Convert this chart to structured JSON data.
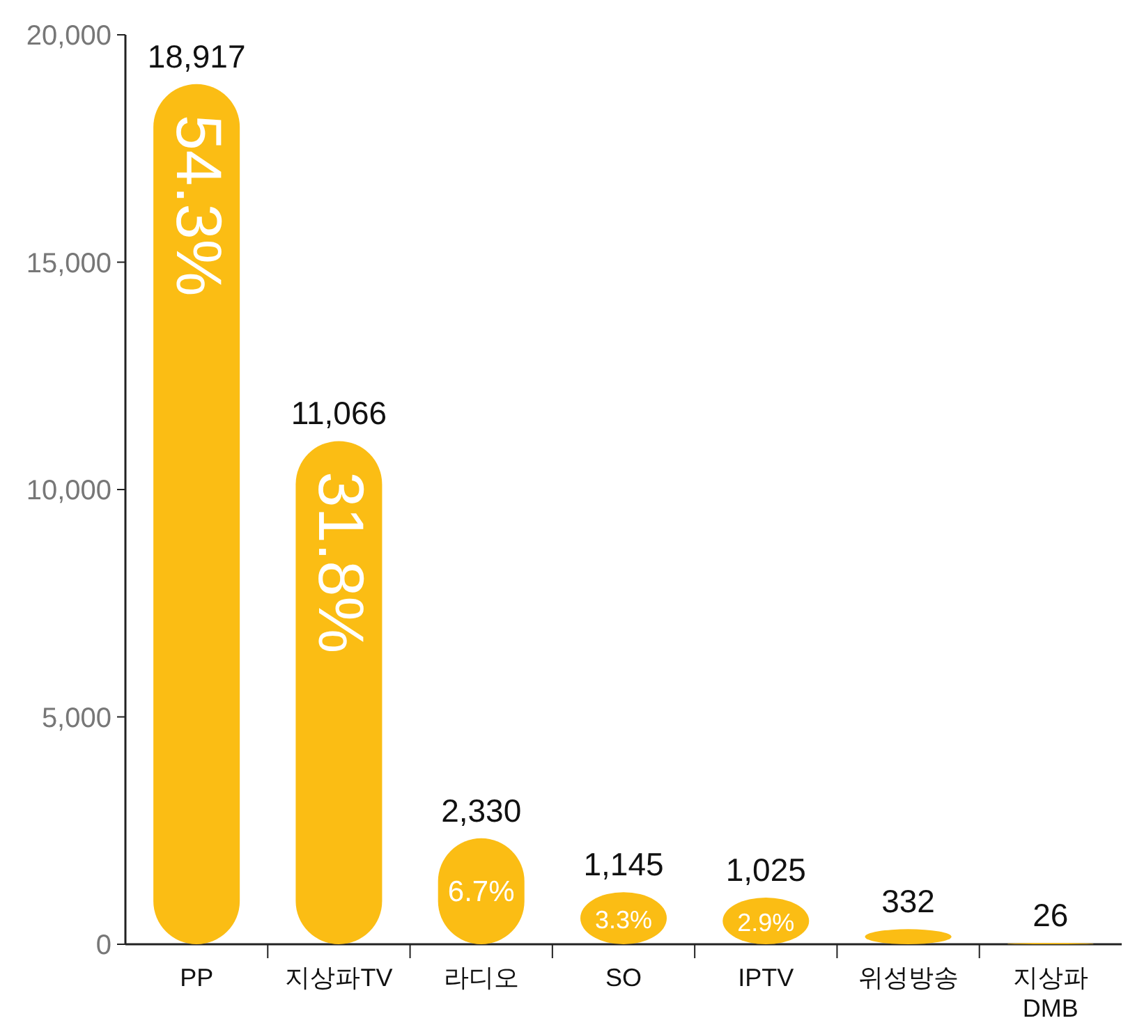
{
  "chart_data": {
    "type": "bar",
    "categories": [
      "PP",
      "지상파TV",
      "라디오",
      "SO",
      "IPTV",
      "위성방송",
      "지상파\nDMB"
    ],
    "values": [
      18917,
      11066,
      2330,
      1145,
      1025,
      332,
      26
    ],
    "color": "#fbbd14",
    "value_labels": [
      "18,917",
      "11,066",
      "2,330",
      "1,145",
      "1,025",
      "332",
      "26"
    ],
    "ylim": [
      0,
      20000
    ],
    "yticks": [
      {
        "value": 0,
        "label": "0"
      },
      {
        "value": 5000,
        "label": "5,000"
      },
      {
        "value": 10000,
        "label": "10,000"
      },
      {
        "value": 15000,
        "label": "15,000"
      },
      {
        "value": 20000,
        "label": "20,000"
      }
    ],
    "annotations": [
      {
        "text": "54.3%",
        "x": "PP",
        "y": 18917
      },
      {
        "text": "31.8%",
        "x": "지상파TV",
        "y": 11066
      },
      {
        "text": "6.7%",
        "x": "라디오",
        "y": 2330
      },
      {
        "text": "3.3%",
        "x": "SO",
        "y": 1145
      },
      {
        "text": "2.9%",
        "x": "IPTV",
        "y": 1025
      }
    ],
    "data_labels": false
  }
}
